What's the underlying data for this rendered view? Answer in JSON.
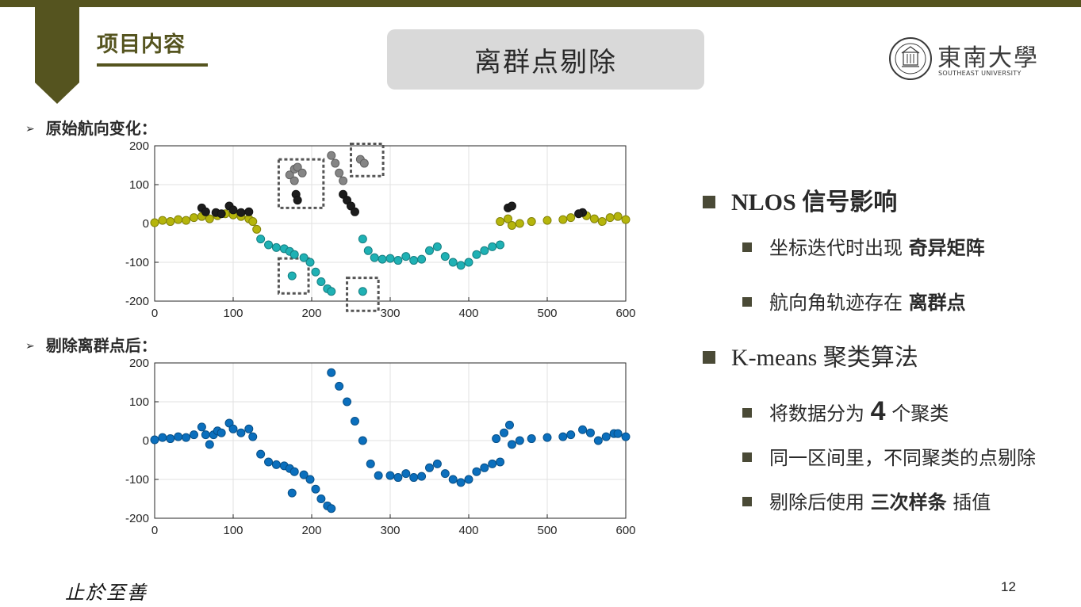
{
  "header": {
    "section_title": "项目内容",
    "slide_title": "离群点剔除"
  },
  "logo": {
    "name": "東南大學",
    "subtitle": "SOUTHEAST UNIVERSITY"
  },
  "labels": {
    "original": "原始航向变化：",
    "after": "剔除离群点后：",
    "arrow": "➢"
  },
  "bullets": {
    "b1": "NLOS 信号影响",
    "b1_1_prefix": "坐标迭代时出现 ",
    "b1_1_bold": "奇异矩阵",
    "b1_2_prefix": "航向角轨迹存在 ",
    "b1_2_bold": "离群点",
    "b2": "K-means 聚类算法",
    "b2_1_prefix": "将数据分为 ",
    "b2_1_bold": "4",
    "b2_1_suffix": " 个聚类",
    "b2_2": "同一区间里，不同聚类的点剔除",
    "b2_3_prefix": "剔除后使用 ",
    "b2_3_bold": "三次样条",
    "b2_3_suffix": " 插值"
  },
  "footer": {
    "motto": "止於至善",
    "page": "12"
  },
  "colors": {
    "olive": "#55541f",
    "yellow": "#b5b50c",
    "black": "#1c1c1c",
    "teal": "#1fb1b4",
    "gray": "#858585",
    "blue": "#0b6fbd"
  },
  "chart_data": [
    {
      "type": "scatter",
      "title": "原始航向变化",
      "xlim": [
        0,
        600
      ],
      "ylim": [
        -200,
        200
      ],
      "x_ticks": [
        0,
        100,
        200,
        300,
        400,
        500,
        600
      ],
      "y_ticks": [
        200,
        100,
        0,
        -100,
        -200
      ],
      "grid": true,
      "highlight_boxes": [
        {
          "x": [
            158,
            215
          ],
          "y": [
            40,
            165
          ]
        },
        {
          "x": [
            250,
            291
          ],
          "y": [
            122,
            205
          ]
        },
        {
          "x": [
            158,
            196
          ],
          "y": [
            -180,
            -90
          ]
        },
        {
          "x": [
            245,
            285
          ],
          "y": [
            -225,
            -140
          ]
        }
      ],
      "series": [
        {
          "color": "#b5b50c",
          "points": [
            [
              0,
              2
            ],
            [
              10,
              8
            ],
            [
              20,
              5
            ],
            [
              30,
              10
            ],
            [
              40,
              8
            ],
            [
              50,
              15
            ],
            [
              60,
              18
            ],
            [
              70,
              12
            ],
            [
              80,
              20
            ],
            [
              90,
              25
            ],
            [
              100,
              22
            ],
            [
              110,
              18
            ],
            [
              120,
              12
            ],
            [
              125,
              5
            ],
            [
              130,
              -15
            ],
            [
              440,
              5
            ],
            [
              450,
              12
            ],
            [
              455,
              -5
            ],
            [
              465,
              0
            ],
            [
              480,
              5
            ],
            [
              500,
              8
            ],
            [
              520,
              10
            ],
            [
              530,
              15
            ],
            [
              550,
              20
            ],
            [
              560,
              12
            ],
            [
              570,
              5
            ],
            [
              580,
              15
            ],
            [
              590,
              18
            ],
            [
              600,
              10
            ]
          ]
        },
        {
          "color": "#1c1c1c",
          "points": [
            [
              60,
              40
            ],
            [
              65,
              30
            ],
            [
              78,
              28
            ],
            [
              85,
              25
            ],
            [
              95,
              45
            ],
            [
              100,
              35
            ],
            [
              110,
              28
            ],
            [
              120,
              30
            ],
            [
              180,
              75
            ],
            [
              182,
              60
            ],
            [
              240,
              75
            ],
            [
              245,
              60
            ],
            [
              250,
              45
            ],
            [
              255,
              30
            ],
            [
              450,
              40
            ],
            [
              455,
              45
            ],
            [
              545,
              28
            ],
            [
              540,
              25
            ]
          ]
        },
        {
          "color": "#1fb1b4",
          "points": [
            [
              135,
              -40
            ],
            [
              145,
              -55
            ],
            [
              155,
              -62
            ],
            [
              165,
              -65
            ],
            [
              172,
              -72
            ],
            [
              178,
              -80
            ],
            [
              175,
              -135
            ],
            [
              190,
              -88
            ],
            [
              198,
              -100
            ],
            [
              205,
              -125
            ],
            [
              212,
              -150
            ],
            [
              220,
              -168
            ],
            [
              225,
              -175
            ],
            [
              265,
              -40
            ],
            [
              272,
              -70
            ],
            [
              280,
              -88
            ],
            [
              290,
              -92
            ],
            [
              300,
              -90
            ],
            [
              310,
              -95
            ],
            [
              320,
              -85
            ],
            [
              330,
              -95
            ],
            [
              340,
              -92
            ],
            [
              350,
              -70
            ],
            [
              360,
              -60
            ],
            [
              370,
              -85
            ],
            [
              380,
              -100
            ],
            [
              390,
              -108
            ],
            [
              400,
              -100
            ],
            [
              410,
              -80
            ],
            [
              420,
              -70
            ],
            [
              430,
              -60
            ],
            [
              440,
              -55
            ],
            [
              265,
              -175
            ]
          ]
        },
        {
          "color": "#858585",
          "points": [
            [
              172,
              125
            ],
            [
              178,
              140
            ],
            [
              182,
              145
            ],
            [
              188,
              130
            ],
            [
              178,
              110
            ],
            [
              225,
              175
            ],
            [
              230,
              155
            ],
            [
              235,
              130
            ],
            [
              240,
              110
            ],
            [
              262,
              165
            ],
            [
              267,
              155
            ]
          ]
        }
      ]
    },
    {
      "type": "scatter",
      "title": "剔除离群点后",
      "xlim": [
        0,
        600
      ],
      "ylim": [
        -200,
        200
      ],
      "x_ticks": [
        0,
        100,
        200,
        300,
        400,
        500,
        600
      ],
      "y_ticks": [
        200,
        100,
        0,
        -100,
        -200
      ],
      "grid": true,
      "series": [
        {
          "color": "#0b6fbd",
          "points": [
            [
              0,
              2
            ],
            [
              10,
              8
            ],
            [
              20,
              5
            ],
            [
              30,
              10
            ],
            [
              40,
              8
            ],
            [
              50,
              15
            ],
            [
              60,
              35
            ],
            [
              65,
              15
            ],
            [
              70,
              -10
            ],
            [
              75,
              15
            ],
            [
              80,
              25
            ],
            [
              85,
              20
            ],
            [
              95,
              45
            ],
            [
              100,
              30
            ],
            [
              110,
              20
            ],
            [
              120,
              30
            ],
            [
              125,
              10
            ],
            [
              135,
              -35
            ],
            [
              145,
              -55
            ],
            [
              155,
              -62
            ],
            [
              165,
              -65
            ],
            [
              172,
              -72
            ],
            [
              178,
              -80
            ],
            [
              175,
              -135
            ],
            [
              190,
              -88
            ],
            [
              198,
              -100
            ],
            [
              205,
              -125
            ],
            [
              212,
              -150
            ],
            [
              220,
              -168
            ],
            [
              225,
              -175
            ],
            [
              225,
              175
            ],
            [
              235,
              140
            ],
            [
              245,
              100
            ],
            [
              255,
              50
            ],
            [
              265,
              0
            ],
            [
              275,
              -60
            ],
            [
              285,
              -90
            ],
            [
              300,
              -90
            ],
            [
              310,
              -95
            ],
            [
              320,
              -85
            ],
            [
              330,
              -95
            ],
            [
              340,
              -92
            ],
            [
              350,
              -70
            ],
            [
              360,
              -60
            ],
            [
              370,
              -85
            ],
            [
              380,
              -100
            ],
            [
              390,
              -108
            ],
            [
              400,
              -100
            ],
            [
              410,
              -80
            ],
            [
              420,
              -70
            ],
            [
              430,
              -60
            ],
            [
              440,
              -55
            ],
            [
              435,
              5
            ],
            [
              445,
              20
            ],
            [
              452,
              40
            ],
            [
              455,
              -10
            ],
            [
              465,
              0
            ],
            [
              480,
              5
            ],
            [
              500,
              8
            ],
            [
              520,
              10
            ],
            [
              530,
              15
            ],
            [
              545,
              28
            ],
            [
              555,
              20
            ],
            [
              565,
              0
            ],
            [
              575,
              10
            ],
            [
              585,
              18
            ],
            [
              590,
              18
            ],
            [
              600,
              10
            ]
          ]
        }
      ]
    }
  ]
}
